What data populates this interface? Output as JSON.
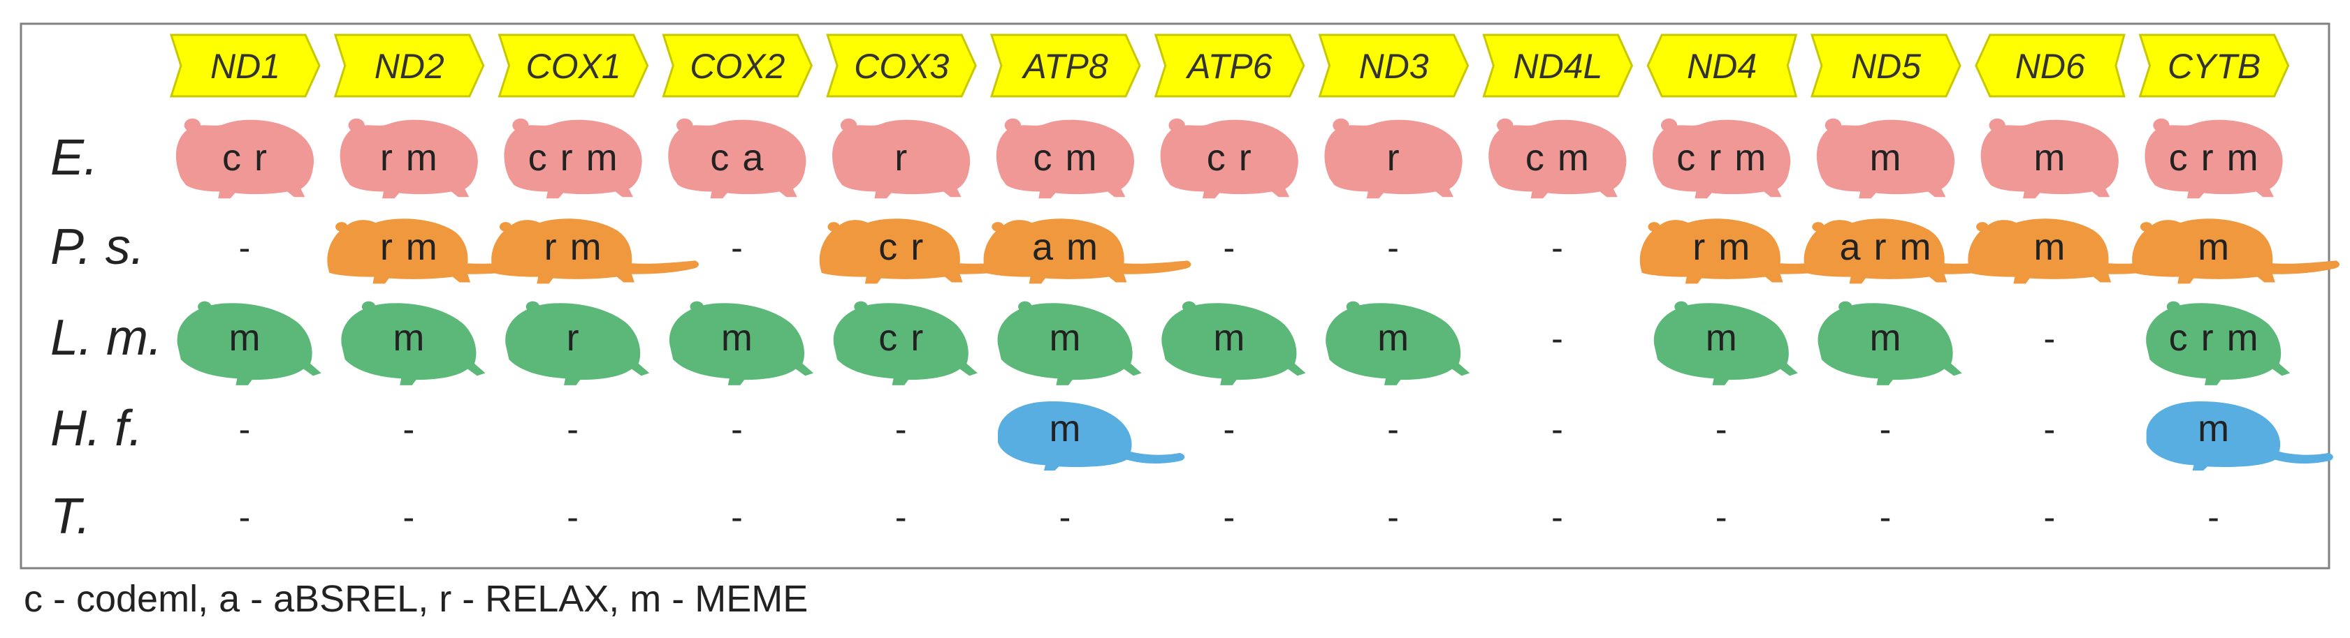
{
  "genes": [
    {
      "label": "ND1",
      "dir": "right"
    },
    {
      "label": "ND2",
      "dir": "right"
    },
    {
      "label": "COX1",
      "dir": "right"
    },
    {
      "label": "COX2",
      "dir": "right"
    },
    {
      "label": "COX3",
      "dir": "right"
    },
    {
      "label": "ATP8",
      "dir": "right"
    },
    {
      "label": "ATP6",
      "dir": "right"
    },
    {
      "label": "ND3",
      "dir": "right"
    },
    {
      "label": "ND4L",
      "dir": "right"
    },
    {
      "label": "ND4",
      "dir": "left"
    },
    {
      "label": "ND5",
      "dir": "right"
    },
    {
      "label": "ND6",
      "dir": "left"
    },
    {
      "label": "CYTB",
      "dir": "right"
    }
  ],
  "rows": [
    {
      "label": "E.",
      "animal": "hamster-icon",
      "color": "#F09896",
      "cells": [
        "c r",
        "r m",
        "c r m",
        "c a",
        "r",
        "c m",
        "c r",
        "r",
        "c m",
        "c r m",
        "m",
        "m",
        "c r m"
      ]
    },
    {
      "label": "P. s.",
      "animal": "prairie-dog-icon",
      "color": "#F0983E",
      "cells": [
        "-",
        "r m",
        "r m",
        "-",
        "c r",
        "a m",
        "-",
        "-",
        "-",
        "r m",
        "a r m",
        "m",
        "m"
      ]
    },
    {
      "label": "L. m.",
      "animal": "lemming-icon",
      "color": "#5CB878",
      "cells": [
        "m",
        "m",
        "r",
        "m",
        "c r",
        "m",
        "m",
        "m",
        "-",
        "m",
        "m",
        "-",
        "c r m"
      ]
    },
    {
      "label": "H. f.",
      "animal": "mole-rat-icon",
      "color": "#58AEE0",
      "cells": [
        "-",
        "-",
        "-",
        "-",
        "-",
        "m",
        "-",
        "-",
        "-",
        "-",
        "-",
        "-",
        "m"
      ]
    },
    {
      "label": "T.",
      "animal": "none",
      "color": "#ffffff",
      "cells": [
        "-",
        "-",
        "-",
        "-",
        "-",
        "-",
        "-",
        "-",
        "-",
        "-",
        "-",
        "-",
        "-"
      ]
    }
  ],
  "legend": "c - codeml, a - aBSREL, r - RELAX, m - MEME",
  "colors": {
    "gene_fill": "#FFFF00",
    "gene_stroke": "#C8C800",
    "text": "#333333",
    "frame": "#808080"
  }
}
